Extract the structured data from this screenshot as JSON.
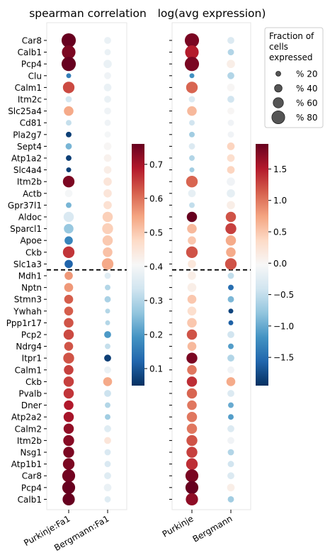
{
  "chart_data": {
    "type": "scatter",
    "panels": [
      {
        "title": "spearman correlation",
        "x_categories": [
          "Purkinje:Fa1",
          "Bergmann:Fa1"
        ],
        "colorbar": {
          "ticks": [
            0.1,
            0.2,
            0.3,
            0.4,
            0.5,
            0.6,
            0.7
          ],
          "range": [
            0.05,
            0.76
          ],
          "colormap": "RdBu_r"
        }
      },
      {
        "title": "log(avg expression)",
        "x_categories": [
          "Purkinje",
          "Bergmann"
        ],
        "colorbar": {
          "ticks": [
            1.5,
            1.0,
            0.5,
            0.0,
            -0.5,
            -1.0,
            -1.5
          ],
          "tick_labels": [
            "1.5",
            "1.0",
            "0.5",
            "0.0",
            "−0.5",
            "−1.0",
            "−1.5"
          ],
          "range": [
            -1.95,
            1.9
          ],
          "colormap": "RdBu_r"
        }
      }
    ],
    "genes": [
      "Car8",
      "Calb1",
      "Pcp4",
      "Clu",
      "Calm1",
      "Itm2c",
      "Slc25a4",
      "Cd81",
      "Pla2g7",
      "Sept4",
      "Atp1a2",
      "Slc4a4",
      "Itm2b",
      "Actb",
      "Gpr37l1",
      "Aldoc",
      "Sparcl1",
      "Apoe",
      "Ckb",
      "Slc1a3",
      "Mdh1",
      "Nptn",
      "Stmn3",
      "Ywhah",
      "Ppp1r17",
      "Pcp2",
      "Ndrg4",
      "Itpr1",
      "Calm1",
      "Ckb",
      "Pvalb",
      "Dner",
      "Atp2a2",
      "Calm2",
      "Itm2b",
      "Nsg1",
      "Atp1b1",
      "Car8",
      "Pcp4",
      "Calb1"
    ],
    "divider_after_row": 19,
    "spearman": {
      "purkinje": [
        0.76,
        0.74,
        0.76,
        0.16,
        0.64,
        0.34,
        0.54,
        0.32,
        0.07,
        0.24,
        0.07,
        0.07,
        0.74,
        0.4,
        0.24,
        0.35,
        0.27,
        0.17,
        0.66,
        0.12,
        0.56,
        0.56,
        0.62,
        0.62,
        0.63,
        0.64,
        0.63,
        0.63,
        0.65,
        0.65,
        0.66,
        0.69,
        0.7,
        0.72,
        0.73,
        0.74,
        0.74,
        0.75,
        0.76,
        0.76
      ],
      "bergmann": [
        0.38,
        0.38,
        0.38,
        0.39,
        0.38,
        0.38,
        0.39,
        0.39,
        0.4,
        0.41,
        0.42,
        0.43,
        0.45,
        0.45,
        0.46,
        0.49,
        0.49,
        0.5,
        0.51,
        0.54,
        0.36,
        0.3,
        0.29,
        0.3,
        0.3,
        0.2,
        0.32,
        0.07,
        0.38,
        0.54,
        0.33,
        0.3,
        0.28,
        0.36,
        0.45,
        0.35,
        0.35,
        0.36,
        0.38,
        0.36
      ]
    },
    "expression": {
      "purkinje": [
        1.8,
        1.5,
        1.8,
        -1.2,
        1.1,
        -0.3,
        0.6,
        -0.4,
        -0.7,
        -0.3,
        -0.6,
        -0.7,
        1.1,
        -0.2,
        -0.5,
        1.9,
        0.6,
        0.5,
        1.2,
        0.2,
        0.1,
        0.1,
        0.5,
        0.3,
        0.5,
        1.2,
        0.6,
        1.8,
        1.0,
        1.4,
        1.1,
        1.0,
        1.0,
        1.0,
        1.2,
        1.3,
        1.4,
        1.8,
        1.9,
        1.7
      ],
      "bergmann": [
        -0.3,
        -0.6,
        0.1,
        -0.6,
        0.0,
        -0.4,
        0.0,
        -0.1,
        -0.1,
        0.4,
        0.3,
        0.4,
        -0.1,
        -0.2,
        0.1,
        1.2,
        1.3,
        0.7,
        0.7,
        1.2,
        -0.5,
        -1.5,
        -0.9,
        -1.8,
        -1.6,
        -0.4,
        -1.1,
        -0.6,
        -0.1,
        0.7,
        -0.3,
        -1.0,
        -1.1,
        -0.3,
        -0.1,
        -0.6,
        -0.4,
        -0.3,
        0.1,
        -0.7
      ]
    },
    "fraction_expressed": {
      "purkinje": [
        90,
        85,
        90,
        20,
        70,
        30,
        55,
        25,
        25,
        30,
        25,
        20,
        70,
        40,
        25,
        60,
        55,
        45,
        70,
        45,
        45,
        50,
        50,
        50,
        55,
        60,
        50,
        65,
        55,
        60,
        60,
        55,
        60,
        60,
        65,
        65,
        70,
        80,
        80,
        75
      ],
      "bergmann": [
        35,
        30,
        45,
        35,
        40,
        35,
        35,
        30,
        30,
        40,
        40,
        40,
        45,
        45,
        45,
        60,
        65,
        60,
        55,
        70,
        30,
        25,
        30,
        20,
        20,
        35,
        25,
        35,
        35,
        50,
        35,
        25,
        25,
        35,
        35,
        30,
        30,
        35,
        40,
        30
      ]
    },
    "size_legend": {
      "title": "Fraction of\ncells\nexpressed",
      "entries": [
        {
          "label": "% 20",
          "value": 20
        },
        {
          "label": "% 40",
          "value": 40
        },
        {
          "label": "% 60",
          "value": 60
        },
        {
          "label": "% 80",
          "value": 80
        }
      ]
    }
  }
}
